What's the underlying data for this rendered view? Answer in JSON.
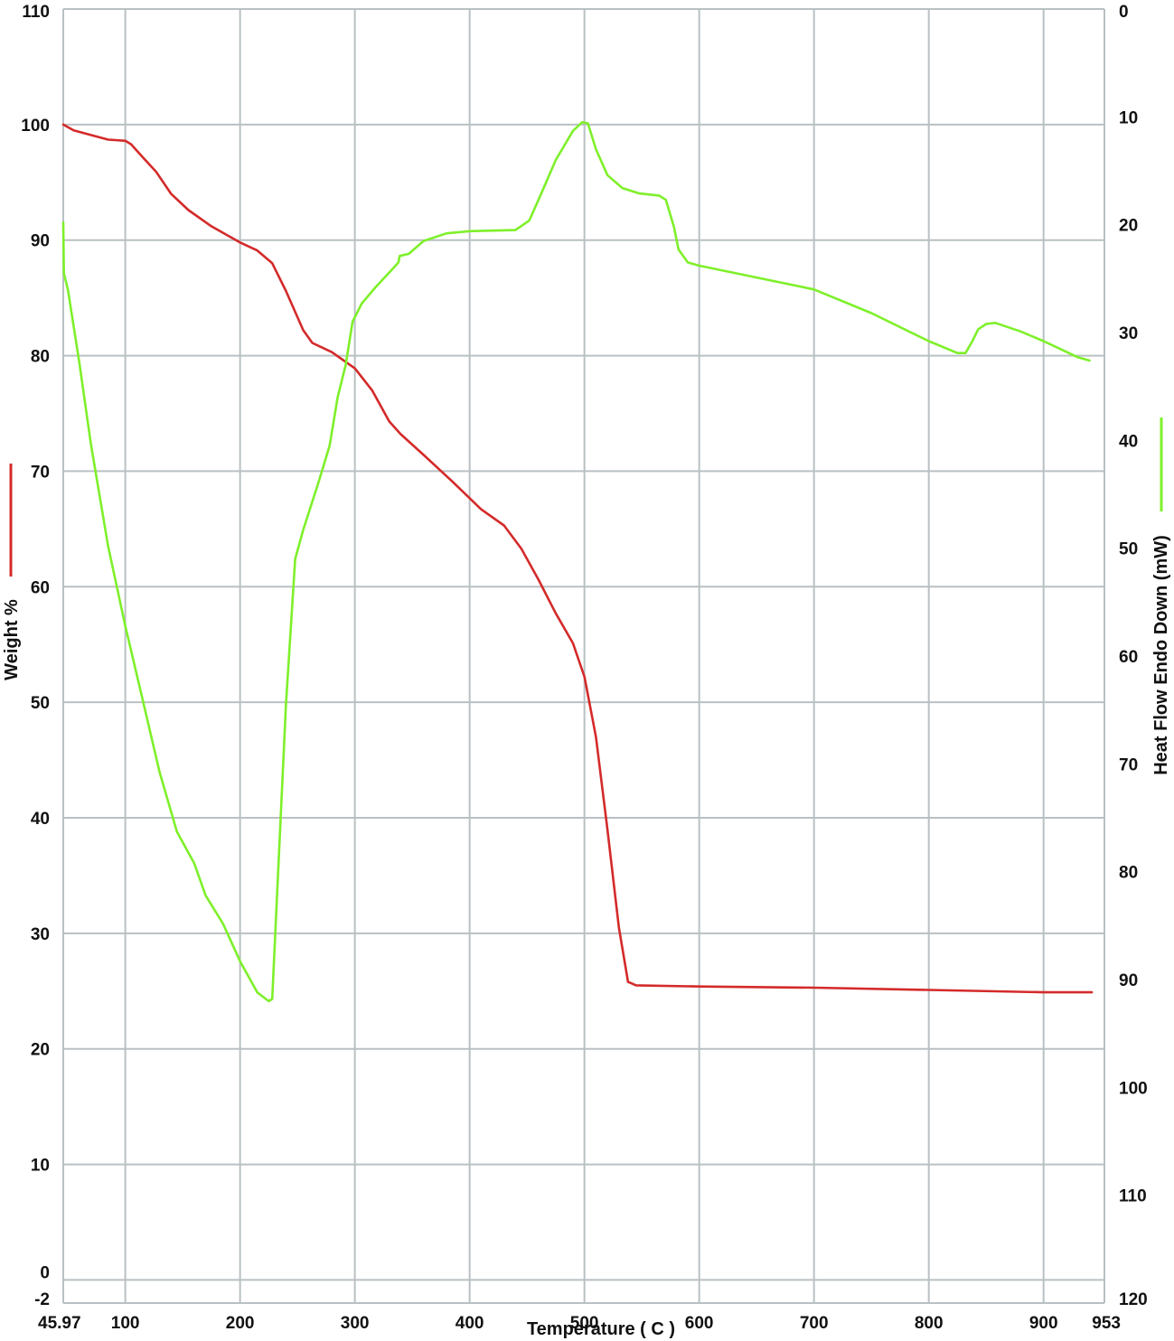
{
  "chart_data": {
    "type": "line",
    "title": "",
    "xlabel": "Temperature ( C )",
    "ylabel_left": "Weight %",
    "ylabel_right": "Heat Flow Endo Down (mW)",
    "xlim": [
      45.97,
      953
    ],
    "ylim_left": [
      -2,
      110
    ],
    "ylim_right": [
      0,
      120
    ],
    "right_axis_inverted": true,
    "grid": true,
    "x_ticks": [
      "45.97",
      "100",
      "200",
      "300",
      "400",
      "500",
      "600",
      "700",
      "800",
      "900",
      "953"
    ],
    "y_left_ticks": [
      "110",
      "100",
      "90",
      "80",
      "70",
      "60",
      "50",
      "40",
      "30",
      "20",
      "10",
      "0",
      "-2"
    ],
    "y_right_ticks": [
      "0",
      "10",
      "20",
      "30",
      "40",
      "50",
      "60",
      "70",
      "80",
      "90",
      "100",
      "110",
      "120"
    ],
    "colors": {
      "weight": "#d42a2a",
      "heat_flow": "#7ef02a"
    },
    "series": [
      {
        "axis": "left",
        "color": "#d42a2a",
        "points": [
          [
            46,
            100
          ],
          [
            55,
            99.5
          ],
          [
            70,
            99.1
          ],
          [
            85,
            98.7
          ],
          [
            100,
            98.6
          ],
          [
            105,
            98.3
          ],
          [
            115,
            97.2
          ],
          [
            127,
            95.9
          ],
          [
            140,
            94
          ],
          [
            155,
            92.6
          ],
          [
            175,
            91.2
          ],
          [
            200,
            89.8
          ],
          [
            215,
            89.1
          ],
          [
            228,
            88
          ],
          [
            240,
            85.6
          ],
          [
            255,
            82.2
          ],
          [
            263,
            81.1
          ],
          [
            280,
            80.3
          ],
          [
            300,
            78.9
          ],
          [
            315,
            77
          ],
          [
            330,
            74.3
          ],
          [
            340,
            73.2
          ],
          [
            360,
            71.4
          ],
          [
            385,
            69.1
          ],
          [
            410,
            66.7
          ],
          [
            430,
            65.3
          ],
          [
            445,
            63.3
          ],
          [
            460,
            60.6
          ],
          [
            475,
            57.7
          ],
          [
            490,
            55.1
          ],
          [
            500,
            52.2
          ],
          [
            510,
            47
          ],
          [
            520,
            39
          ],
          [
            530,
            30.5
          ],
          [
            538,
            25.8
          ],
          [
            545,
            25.5
          ],
          [
            600,
            25.4
          ],
          [
            700,
            25.3
          ],
          [
            800,
            25.1
          ],
          [
            900,
            24.9
          ],
          [
            942,
            24.9
          ]
        ]
      },
      {
        "axis": "right",
        "color": "#7ef02a",
        "points": [
          [
            46,
            19.8
          ],
          [
            46.5,
            24.5
          ],
          [
            50,
            26
          ],
          [
            60,
            32.8
          ],
          [
            70,
            40.3
          ],
          [
            85,
            49.8
          ],
          [
            100,
            57.2
          ],
          [
            115,
            64
          ],
          [
            130,
            70.8
          ],
          [
            145,
            76.3
          ],
          [
            160,
            79.2
          ],
          [
            170,
            82.2
          ],
          [
            185,
            84.8
          ],
          [
            200,
            88.3
          ],
          [
            215,
            91.2
          ],
          [
            225,
            92
          ],
          [
            228,
            91.8
          ],
          [
            240,
            64.5
          ],
          [
            248,
            51
          ],
          [
            255,
            48.3
          ],
          [
            268,
            44
          ],
          [
            278,
            40.5
          ],
          [
            285,
            36
          ],
          [
            292,
            33
          ],
          [
            298,
            29
          ],
          [
            306,
            27.3
          ],
          [
            318,
            25.8
          ],
          [
            332,
            24.2
          ],
          [
            338,
            23.5
          ],
          [
            339,
            22.9
          ],
          [
            347,
            22.7
          ],
          [
            360,
            21.5
          ],
          [
            380,
            20.8
          ],
          [
            400,
            20.6
          ],
          [
            440,
            20.5
          ],
          [
            452,
            19.6
          ],
          [
            462,
            17.2
          ],
          [
            475,
            14
          ],
          [
            490,
            11.3
          ],
          [
            498,
            10.5
          ],
          [
            503,
            10.6
          ],
          [
            510,
            13
          ],
          [
            520,
            15.4
          ],
          [
            533,
            16.6
          ],
          [
            548,
            17.1
          ],
          [
            565,
            17.3
          ],
          [
            571,
            17.7
          ],
          [
            578,
            20.2
          ],
          [
            582,
            22.3
          ],
          [
            590,
            23.5
          ],
          [
            600,
            23.8
          ],
          [
            650,
            24.9
          ],
          [
            700,
            26
          ],
          [
            750,
            28.2
          ],
          [
            800,
            30.8
          ],
          [
            825,
            31.9
          ],
          [
            832,
            31.9
          ],
          [
            838,
            30.8
          ],
          [
            843,
            29.7
          ],
          [
            850,
            29.2
          ],
          [
            858,
            29.1
          ],
          [
            880,
            29.9
          ],
          [
            900,
            30.8
          ],
          [
            930,
            32.3
          ],
          [
            940,
            32.6
          ]
        ]
      }
    ]
  }
}
